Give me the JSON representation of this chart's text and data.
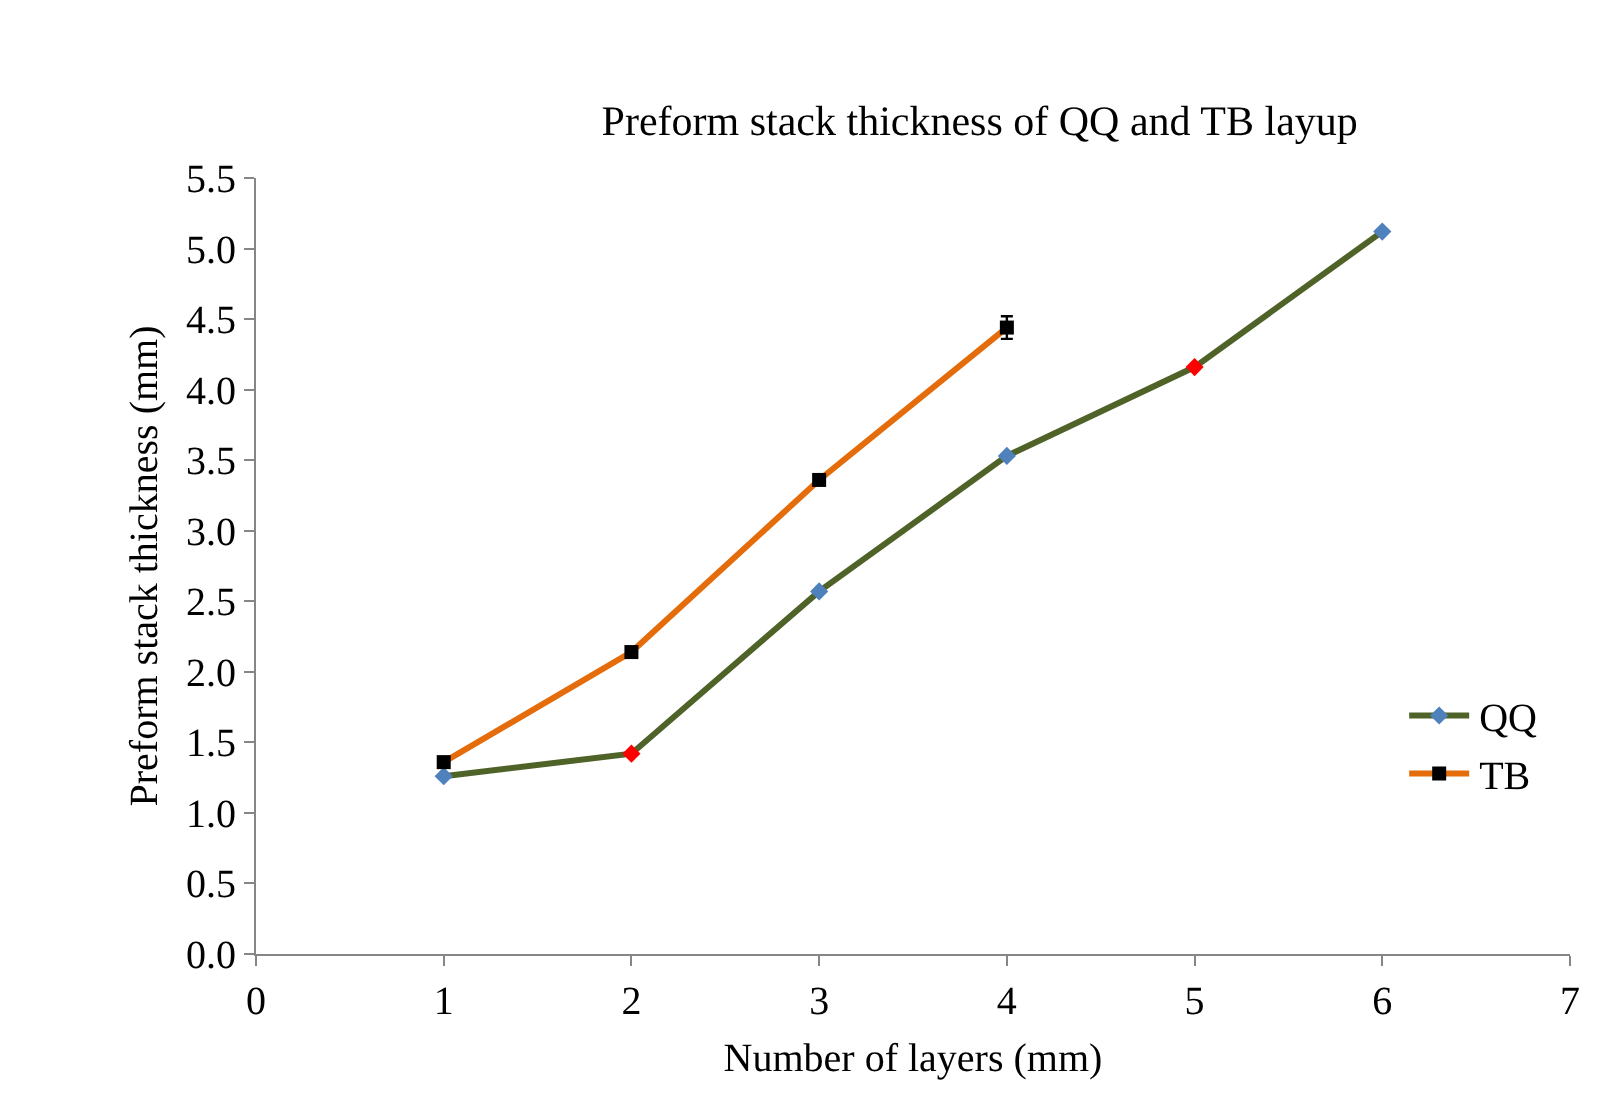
{
  "chart_data": {
    "type": "line",
    "title": "Preform stack thickness of QQ and TB layup",
    "xlabel": "Number of layers (mm)",
    "ylabel": "Preform stack thickness (mm)",
    "xlim": [
      0,
      7
    ],
    "xticks": [
      0,
      1,
      2,
      3,
      4,
      5,
      6,
      7
    ],
    "ylim": [
      0,
      5.5
    ],
    "yticks": [
      {
        "value": 0,
        "label": "0.0"
      },
      {
        "value": 0.5,
        "label": "0.5"
      },
      {
        "value": 1,
        "label": "1.0"
      },
      {
        "value": 1.5,
        "label": "1.5"
      },
      {
        "value": 2,
        "label": "2.0"
      },
      {
        "value": 2.5,
        "label": "2.5"
      },
      {
        "value": 3,
        "label": "3.0"
      },
      {
        "value": 3.5,
        "label": "3.5"
      },
      {
        "value": 4,
        "label": "4.0"
      },
      {
        "value": 4.5,
        "label": "4.5"
      },
      {
        "value": 5,
        "label": "5.0"
      },
      {
        "value": 5.5,
        "label": "5.5"
      }
    ],
    "grid": false,
    "legend": "right",
    "line_style": "solid",
    "series": [
      {
        "name": "QQ",
        "color": "#4f6228",
        "marker": "diamond",
        "colors": [
          "#4f81bd",
          "#ff0000",
          "#4f81bd",
          "#4f81bd",
          "#ff0000",
          "#4f81bd"
        ],
        "x": [
          1,
          2,
          3,
          4,
          5,
          6
        ],
        "values": [
          1.26,
          1.42,
          2.57,
          3.53,
          4.16,
          5.12
        ]
      },
      {
        "name": "TB",
        "color": "#e46c0a",
        "marker": "square",
        "colors": [
          "#000000",
          "#000000",
          "#000000",
          "#000000"
        ],
        "x": [
          1,
          2,
          3,
          4
        ],
        "values": [
          1.36,
          2.14,
          3.36,
          4.44
        ],
        "errors": [
          null,
          null,
          null,
          0.08
        ]
      }
    ]
  }
}
